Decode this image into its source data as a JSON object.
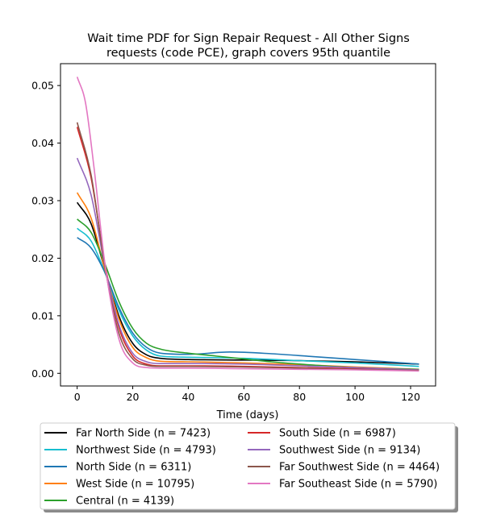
{
  "chart_data": {
    "type": "line",
    "title_line1": "Wait time PDF for Sign Repair Request - All Other Signs",
    "title_line2": "requests (code PCE), graph covers 95th quantile",
    "xlabel": "Time (days)",
    "ylabel": "",
    "xlim": [
      -6,
      129
    ],
    "ylim": [
      -0.0022,
      0.0538
    ],
    "xticks": [
      0,
      20,
      40,
      60,
      80,
      100,
      120
    ],
    "yticks": [
      0.0,
      0.01,
      0.02,
      0.03,
      0.04,
      0.05
    ],
    "xtick_labels": [
      "0",
      "20",
      "40",
      "60",
      "80",
      "100",
      "120"
    ],
    "ytick_labels": [
      "0.00",
      "0.01",
      "0.02",
      "0.03",
      "0.04",
      "0.05"
    ],
    "grid": false,
    "legend_placement": "below",
    "series": [
      {
        "name": "Far North Side (n = 7423)",
        "color": "#000000",
        "x": [
          0,
          5,
          10,
          15,
          20,
          25,
          30,
          40,
          60,
          80,
          100,
          123
        ],
        "y": [
          0.0297,
          0.026,
          0.018,
          0.01,
          0.0052,
          0.0032,
          0.0026,
          0.0024,
          0.0023,
          0.0022,
          0.002,
          0.0016
        ]
      },
      {
        "name": "Northwest Side (n = 4793)",
        "color": "#17becf",
        "x": [
          0,
          5,
          10,
          15,
          20,
          25,
          30,
          40,
          60,
          80,
          100,
          123
        ],
        "y": [
          0.0252,
          0.023,
          0.0175,
          0.011,
          0.0065,
          0.004,
          0.003,
          0.0028,
          0.0026,
          0.0022,
          0.0018,
          0.0012
        ]
      },
      {
        "name": "North Side (n = 6311)",
        "color": "#1f77b4",
        "x": [
          0,
          5,
          10,
          15,
          20,
          25,
          30,
          40,
          55,
          70,
          85,
          100,
          123
        ],
        "y": [
          0.0236,
          0.0218,
          0.0175,
          0.0115,
          0.007,
          0.0045,
          0.0035,
          0.0033,
          0.0037,
          0.0034,
          0.0029,
          0.0024,
          0.0016
        ]
      },
      {
        "name": "West Side (n = 10795)",
        "color": "#ff7f0e",
        "x": [
          0,
          5,
          10,
          15,
          20,
          25,
          30,
          40,
          60,
          80,
          100,
          123
        ],
        "y": [
          0.0314,
          0.027,
          0.018,
          0.0095,
          0.0045,
          0.0027,
          0.0021,
          0.002,
          0.0018,
          0.0015,
          0.0011,
          0.0007
        ]
      },
      {
        "name": "Central (n = 4139)",
        "color": "#2ca02c",
        "x": [
          0,
          5,
          10,
          15,
          20,
          25,
          30,
          40,
          50,
          60,
          70,
          80,
          100,
          123
        ],
        "y": [
          0.0268,
          0.0245,
          0.019,
          0.0125,
          0.0078,
          0.0052,
          0.0042,
          0.0035,
          0.003,
          0.0025,
          0.002,
          0.0016,
          0.001,
          0.0007
        ]
      },
      {
        "name": "South Side (n = 6987)",
        "color": "#d62728",
        "x": [
          0,
          5,
          10,
          15,
          20,
          25,
          30,
          40,
          60,
          80,
          100,
          123
        ],
        "y": [
          0.0428,
          0.034,
          0.019,
          0.008,
          0.003,
          0.0016,
          0.0013,
          0.0013,
          0.0012,
          0.001,
          0.0008,
          0.0006
        ]
      },
      {
        "name": "Southwest Side (n = 9134)",
        "color": "#9467bd",
        "x": [
          0,
          5,
          10,
          15,
          20,
          25,
          30,
          40,
          60,
          80,
          100,
          123
        ],
        "y": [
          0.0374,
          0.031,
          0.0185,
          0.0085,
          0.0035,
          0.002,
          0.0017,
          0.0017,
          0.0016,
          0.0013,
          0.001,
          0.0006
        ]
      },
      {
        "name": "Far Southwest Side (n = 4464)",
        "color": "#8c564b",
        "x": [
          0,
          5,
          10,
          15,
          20,
          25,
          30,
          40,
          60,
          80,
          100,
          123
        ],
        "y": [
          0.0436,
          0.0345,
          0.0185,
          0.007,
          0.0025,
          0.0014,
          0.0012,
          0.0012,
          0.0011,
          0.0009,
          0.0007,
          0.0005
        ]
      },
      {
        "name": "Far Southeast Side (n = 5790)",
        "color": "#e377c2",
        "x": [
          0,
          3,
          6,
          10,
          15,
          20,
          25,
          30,
          40,
          60,
          80,
          100,
          123
        ],
        "y": [
          0.0515,
          0.047,
          0.036,
          0.019,
          0.006,
          0.0018,
          0.001,
          0.0009,
          0.0009,
          0.0008,
          0.0007,
          0.0006,
          0.0004
        ]
      }
    ]
  }
}
